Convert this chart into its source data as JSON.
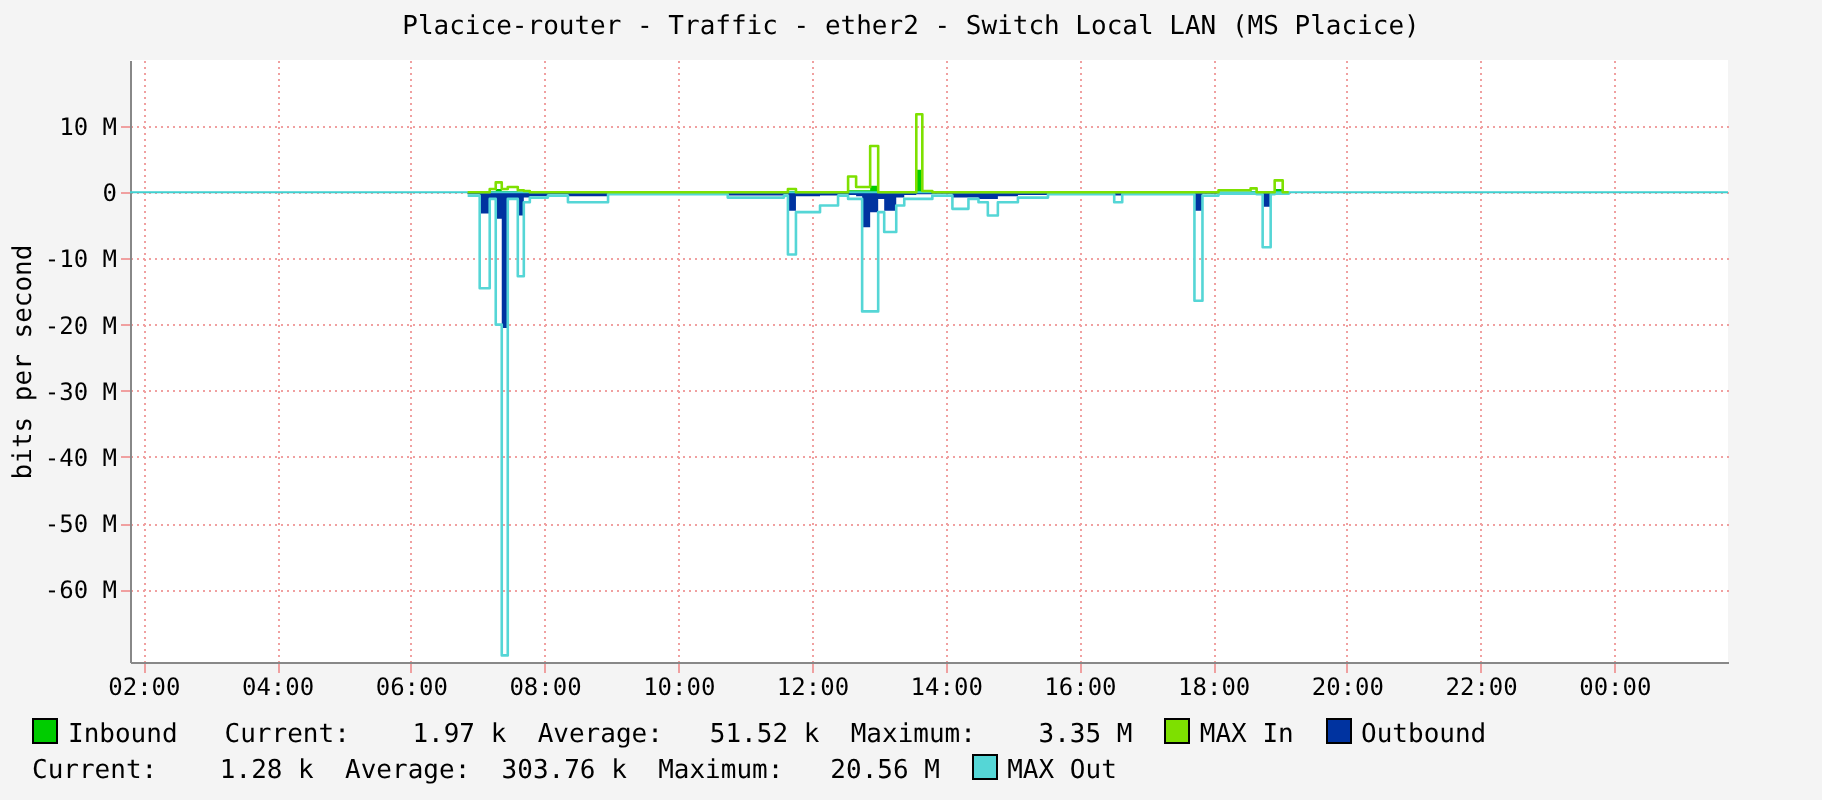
{
  "chart_data": {
    "type": "area",
    "title": "Placice-router - Traffic - ether2 - Switch Local LAN (MS Placice)",
    "ylabel": "bits per second",
    "x": [
      6.85,
      7.03,
      7.18,
      7.27,
      7.36,
      7.45,
      7.6,
      7.69,
      7.78,
      8.05,
      8.35,
      8.95,
      10.74,
      11.58,
      11.64,
      11.76,
      11.88,
      12.12,
      12.39,
      12.54,
      12.66,
      12.75,
      12.87,
      12.99,
      13.08,
      13.26,
      13.38,
      13.56,
      13.65,
      13.8,
      14.1,
      14.34,
      14.49,
      14.63,
      14.78,
      15.08,
      15.53,
      16.52,
      16.64,
      17.03,
      17.72,
      17.84,
      18.08,
      18.56,
      18.65,
      18.74,
      18.86,
      18.92,
      19.04,
      19.13
    ],
    "series": [
      {
        "name": "Inbound",
        "color": "#00cc00",
        "values": [
          0,
          0,
          0.2,
          0.5,
          0.2,
          0.2,
          0.1,
          0,
          0,
          0,
          0,
          0,
          0,
          0,
          0.2,
          0,
          0,
          0,
          0,
          0.3,
          0.3,
          0.3,
          1,
          0,
          0,
          0,
          0,
          3.4,
          0.1,
          0,
          0,
          0,
          0,
          0,
          0,
          0,
          0,
          0,
          0,
          0,
          0,
          0,
          0,
          0.2,
          0,
          0,
          0,
          0.5,
          0,
          0
        ]
      },
      {
        "name": "Outbound",
        "color": "#0033a0",
        "values": [
          -0.3,
          -3.2,
          -1,
          -4,
          -20.5,
          -1,
          -3.5,
          -0.8,
          -0.6,
          -0.3,
          -0.6,
          -0.2,
          -0.5,
          -0.3,
          -2.8,
          -0.6,
          -0.6,
          -0.5,
          -0.3,
          -0.4,
          -0.6,
          -5.3,
          -3,
          -1,
          -2.8,
          -0.8,
          -0.4,
          -0.3,
          -0.3,
          -0.2,
          -0.8,
          -0.8,
          -1,
          -1,
          -0.6,
          -0.4,
          -0.1,
          -0.5,
          -0.1,
          -0.1,
          -2.8,
          -0.2,
          -0.1,
          -0.1,
          -0.1,
          -2.2,
          -0.2,
          -0.1,
          -0.1,
          0
        ]
      },
      {
        "name": "MAX Out",
        "type": "step",
        "color": "#55d6d6",
        "values": [
          -0.5,
          -14.5,
          -1,
          -20,
          -70,
          -1,
          -12.7,
          -1.5,
          -0.8,
          -0.5,
          -1.5,
          -0.3,
          -0.8,
          -0.5,
          -9.4,
          -3,
          -3,
          -2,
          -0.5,
          -1,
          -1,
          -18,
          -18,
          -3,
          -6,
          -2,
          -1,
          -1,
          -1,
          -0.5,
          -2.5,
          -1,
          -1.5,
          -3.5,
          -1.5,
          -0.8,
          -0.3,
          -1.5,
          -0.3,
          -0.3,
          -16.4,
          -0.5,
          -0.2,
          -0.2,
          -0.3,
          -8.3,
          -0.3,
          -0.2,
          -0.2,
          0
        ]
      },
      {
        "name": "MAX In",
        "type": "step",
        "color": "#7ee000",
        "values": [
          0,
          0,
          0.5,
          1.5,
          0.5,
          0.8,
          0.3,
          0.2,
          0,
          0,
          0,
          0,
          0,
          0,
          0.5,
          0,
          0,
          0,
          0,
          2.4,
          0.8,
          0.8,
          7,
          0,
          0,
          0,
          0,
          11.8,
          0.2,
          0,
          0,
          0,
          0,
          0,
          0,
          0,
          0,
          0,
          0,
          0,
          0,
          0,
          0.3,
          0.6,
          0,
          0,
          0,
          1.8,
          0,
          0
        ]
      }
    ],
    "annotations": [
      "Current:    1.97 k  Average:   51.52 k  Maximum:    3.35 M",
      "Current:    1.28 k  Average:  303.76 k  Maximum:   20.56 M"
    ],
    "ref_lines": [
      {
        "axis": "y",
        "value": 0,
        "color": "#40d0d0"
      }
    ],
    "xlim": [
      1.8,
      25.7
    ],
    "xticks": [
      {
        "value": 2,
        "label": "02:00"
      },
      {
        "value": 4,
        "label": "04:00"
      },
      {
        "value": 6,
        "label": "06:00"
      },
      {
        "value": 8,
        "label": "08:00"
      },
      {
        "value": 10,
        "label": "10:00"
      },
      {
        "value": 12,
        "label": "12:00"
      },
      {
        "value": 14,
        "label": "14:00"
      },
      {
        "value": 16,
        "label": "16:00"
      },
      {
        "value": 18,
        "label": "18:00"
      },
      {
        "value": 20,
        "label": "20:00"
      },
      {
        "value": 22,
        "label": "22:00"
      },
      {
        "value": 24,
        "label": "00:00"
      }
    ],
    "ylim": [
      -71,
      20
    ],
    "yticks": [
      {
        "value": -60,
        "label": "-60 M"
      },
      {
        "value": -50,
        "label": "-50 M"
      },
      {
        "value": -40,
        "label": "-40 M"
      },
      {
        "value": -30,
        "label": "-30 M"
      },
      {
        "value": -20,
        "label": "-20 M"
      },
      {
        "value": -10,
        "label": "-10 M"
      },
      {
        "value": 0,
        "label": "0"
      },
      {
        "value": 10,
        "label": "10 M"
      }
    ],
    "grid": true,
    "legend": "bottom",
    "line_style": "solid"
  }
}
